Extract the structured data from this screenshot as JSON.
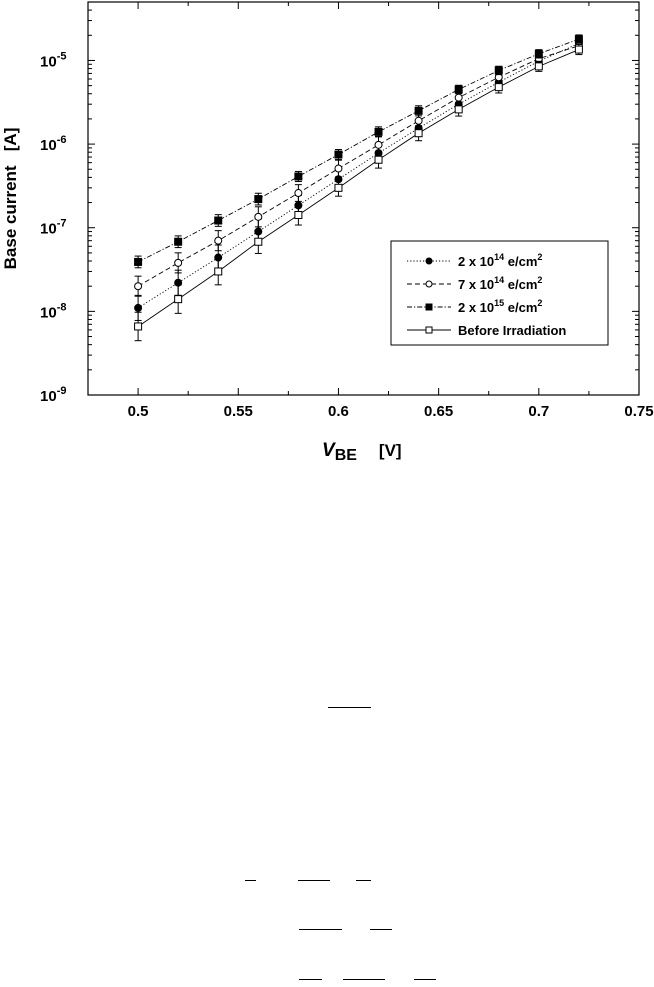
{
  "chart_data": {
    "type": "scatter",
    "x_scale": "linear",
    "y_scale": "log",
    "xlim": [
      0.475,
      0.75
    ],
    "ylim": [
      1e-09,
      5e-05
    ],
    "x_ticks": [
      0.5,
      0.55,
      0.6,
      0.65,
      0.7,
      0.75
    ],
    "x_tick_labels": [
      "0.5",
      "0.55",
      "0.6",
      "0.65",
      "0.7",
      "0.75"
    ],
    "y_ticks": [
      1e-09,
      1e-08,
      1e-07,
      1e-06,
      1e-05
    ],
    "y_tick_labels": [
      {
        "base": "10",
        "exp": "-9"
      },
      {
        "base": "10",
        "exp": "-8"
      },
      {
        "base": "10",
        "exp": "-7"
      },
      {
        "base": "10",
        "exp": "-6"
      },
      {
        "base": "10",
        "exp": "-5"
      }
    ],
    "xlabel": {
      "main": "V",
      "sub": "BE",
      "unit": "[V]"
    },
    "ylabel": "Base current   [A]",
    "grid": false,
    "legend_position": "lower-right",
    "x": [
      0.5,
      0.52,
      0.54,
      0.56,
      0.58,
      0.6,
      0.62,
      0.64,
      0.66,
      0.68,
      0.7,
      0.72
    ],
    "series": [
      {
        "name": "2 x 10^14 e/cm^2",
        "label": {
          "pre": "2 x 10",
          "exp": "14",
          "mid": " e/cm",
          "exp2": "2"
        },
        "marker": "filled-circle",
        "line": "dotted",
        "values": [
          1.1e-08,
          2.2e-08,
          4.4e-08,
          9e-08,
          1.85e-07,
          3.8e-07,
          7.8e-07,
          1.55e-06,
          3e-06,
          5.5e-06,
          9.8e-06,
          1.6e-05
        ],
        "error": [
          0.15,
          0.15,
          0.15,
          0.15,
          0.12,
          0.12,
          0.1,
          0.1,
          0.08,
          0.08,
          0.06,
          0.06
        ]
      },
      {
        "name": "7 x 10^14 e/cm^2",
        "label": {
          "pre": "7 x 10",
          "exp": "14",
          "mid": " e/cm",
          "exp2": "2"
        },
        "marker": "open-circle",
        "line": "dashed",
        "values": [
          2e-08,
          3.8e-08,
          7e-08,
          1.35e-07,
          2.6e-07,
          5.1e-07,
          9.8e-07,
          1.9e-06,
          3.6e-06,
          6.3e-06,
          1.05e-05,
          1.5e-05
        ],
        "error": [
          0.12,
          0.12,
          0.12,
          0.12,
          0.1,
          0.1,
          0.1,
          0.08,
          0.08,
          0.07,
          0.06,
          0.06
        ]
      },
      {
        "name": "2 x 10^15 e/cm^2",
        "label": {
          "pre": "2 x 10",
          "exp": "15",
          "mid": " e/cm",
          "exp2": "2"
        },
        "marker": "filled-square",
        "line": "dash-dot",
        "values": [
          3.9e-08,
          6.8e-08,
          1.22e-07,
          2.2e-07,
          4.1e-07,
          7.5e-07,
          1.4e-06,
          2.5e-06,
          4.5e-06,
          7.6e-06,
          1.2e-05,
          1.8e-05
        ],
        "error": [
          0.07,
          0.07,
          0.07,
          0.07,
          0.06,
          0.06,
          0.06,
          0.06,
          0.05,
          0.05,
          0.05,
          0.05
        ]
      },
      {
        "name": "Before Irradiation",
        "label": {
          "pre": "Before Irradiation",
          "exp": "",
          "mid": "",
          "exp2": ""
        },
        "marker": "open-square",
        "line": "solid",
        "values": [
          6.6e-09,
          1.4e-08,
          3e-08,
          6.8e-08,
          1.42e-07,
          3e-07,
          6.5e-07,
          1.35e-06,
          2.6e-06,
          4.8e-06,
          8.5e-06,
          1.35e-05
        ],
        "error": [
          0.17,
          0.17,
          0.16,
          0.14,
          0.12,
          0.1,
          0.1,
          0.09,
          0.08,
          0.07,
          0.06,
          0.06
        ]
      }
    ]
  }
}
